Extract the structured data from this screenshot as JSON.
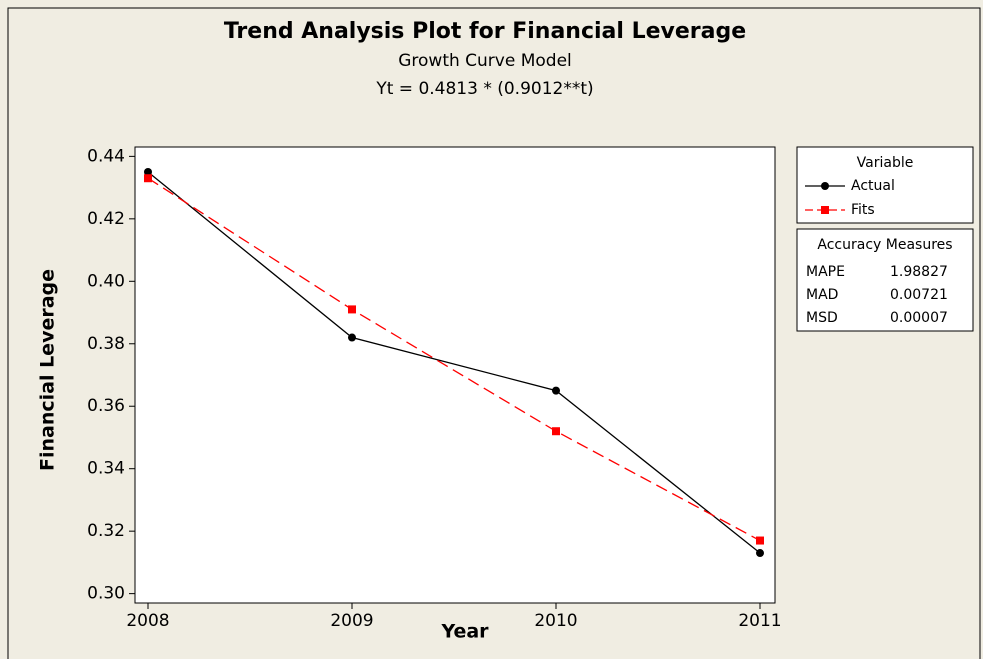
{
  "chart_data": {
    "type": "line",
    "title": "Trend Analysis Plot for Financial Leverage",
    "subtitle": "Growth Curve Model",
    "equation": "Yt = 0.4813 * (0.9012**t)",
    "x_label": "Year",
    "y_label": "Financial Leverage",
    "categories": [
      "2008",
      "2009",
      "2010",
      "2011"
    ],
    "series": [
      {
        "name": "Actual",
        "color": "#000000",
        "marker": "circle",
        "dash": "solid",
        "values": [
          0.435,
          0.382,
          0.365,
          0.313
        ]
      },
      {
        "name": "Fits",
        "color": "#ff0000",
        "marker": "square",
        "dash": "dashed",
        "values": [
          0.433,
          0.391,
          0.352,
          0.317
        ]
      }
    ],
    "ylim": [
      0.297,
      0.443
    ],
    "yticks": [
      {
        "value": 0.3,
        "label": "0.30"
      },
      0.32,
      0.34,
      0.36,
      0.38,
      {
        "value": 0.4,
        "label": "0.40"
      },
      0.42,
      0.44
    ],
    "legend_title": "Variable",
    "legend_position": "right",
    "accuracy_measures": {
      "title": "Accuracy Measures",
      "rows": [
        [
          "MAPE",
          "1.98827"
        ],
        [
          "MAD",
          "0.00721"
        ],
        [
          "MSD",
          "0.00007"
        ]
      ]
    }
  }
}
